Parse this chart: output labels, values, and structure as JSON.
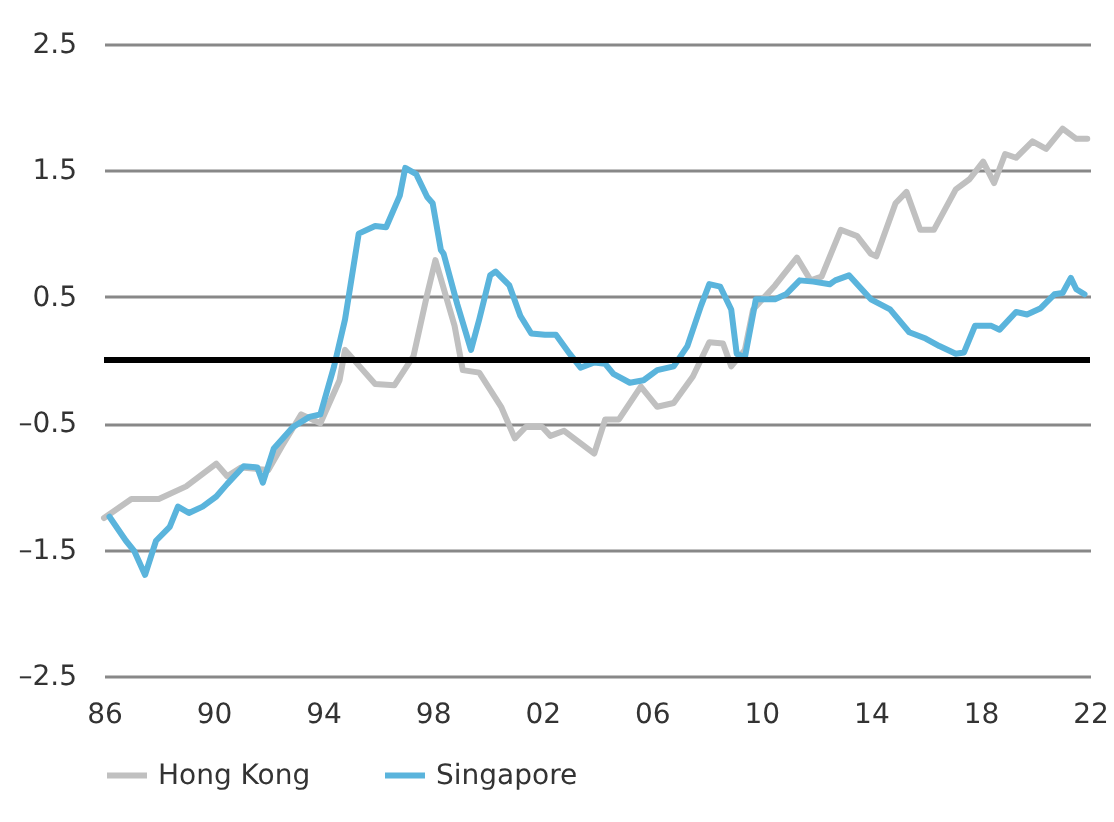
{
  "chart_data": {
    "type": "line",
    "xlim": [
      1986,
      2022
    ],
    "xticks": [
      {
        "value": 1986,
        "label": "86"
      },
      {
        "value": 1990,
        "label": "90"
      },
      {
        "value": 1994,
        "label": "94"
      },
      {
        "value": 1998,
        "label": "98"
      },
      {
        "value": 2002,
        "label": "02"
      },
      {
        "value": 2006,
        "label": "06"
      },
      {
        "value": 2010,
        "label": "10"
      },
      {
        "value": 2014,
        "label": "14"
      },
      {
        "value": 2018,
        "label": "18"
      },
      {
        "value": 2022,
        "label": "22"
      }
    ],
    "ylim": [
      -2.5,
      2.5
    ],
    "yticks": [
      {
        "value": -2.5,
        "label": "–2.5"
      },
      {
        "value": -1.5,
        "label": "–1.5"
      },
      {
        "value": -0.5,
        "label": "–0.5"
      },
      0.5,
      1.5,
      2.5
    ],
    "grid": "y",
    "legend": "bottom",
    "line_style": "solid",
    "ref_lines": [
      {
        "axis": "y",
        "value": 0,
        "color": "#000000"
      }
    ],
    "series": [
      {
        "name": "Hong Kong",
        "color": "#c0c0c0",
        "x": [
          1986,
          1987,
          1988,
          1989,
          1990.1,
          1990.5,
          1991,
          1992,
          1992.5,
          1993.2,
          1993.9,
          1994.6,
          1994.8,
          1995.9,
          1996.6,
          1997.3,
          1997.8,
          1998.1,
          1998.8,
          1999.1,
          1999.7,
          2000.5,
          2001,
          2001.4,
          2002,
          2002.3,
          2002.8,
          2003.9,
          2004.3,
          2004.8,
          2005.6,
          2006.2,
          2006.8,
          2007.5,
          2008.1,
          2008.6,
          2008.9,
          2009.4,
          2009.7,
          2010.5,
          2011.3,
          2011.8,
          2012.2,
          2012.9,
          2013.5,
          2014,
          2014.2,
          2014.9,
          2015.3,
          2015.8,
          2016.3,
          2016.7,
          2017.1,
          2017.6,
          2018.1,
          2018.5,
          2018.9,
          2019.3,
          2019.9,
          2020.4,
          2021,
          2021.5,
          2021.9
        ],
        "values": [
          -1.25,
          -1.1,
          -1.1,
          -1.0,
          -0.82,
          -0.92,
          -0.85,
          -0.87,
          -0.68,
          -0.43,
          -0.5,
          -0.16,
          0.08,
          -0.19,
          -0.2,
          0.03,
          0.52,
          0.79,
          0.27,
          -0.08,
          -0.1,
          -0.37,
          -0.62,
          -0.53,
          -0.53,
          -0.6,
          -0.56,
          -0.74,
          -0.47,
          -0.47,
          -0.21,
          -0.37,
          -0.34,
          -0.13,
          0.14,
          0.13,
          -0.05,
          0.08,
          0.4,
          0.59,
          0.81,
          0.63,
          0.66,
          1.03,
          0.98,
          0.84,
          0.82,
          1.24,
          1.33,
          1.03,
          1.03,
          1.19,
          1.35,
          1.43,
          1.57,
          1.4,
          1.63,
          1.6,
          1.73,
          1.67,
          1.83,
          1.75,
          1.75
        ]
      },
      {
        "name": "Singapore",
        "color": "#5ab4dc",
        "x": [
          1986.2,
          1986.8,
          1987.1,
          1987.5,
          1987.9,
          1988.4,
          1988.7,
          1989.1,
          1989.6,
          1990.1,
          1990.5,
          1991.1,
          1991.6,
          1991.8,
          1992.2,
          1992.9,
          1993.5,
          1993.9,
          1994.4,
          1994.8,
          1995.3,
          1995.9,
          1996.3,
          1996.8,
          1997,
          1997.4,
          1997.8,
          1998,
          1998.3,
          1998.4,
          1998.9,
          1999.4,
          1999.7,
          2000.1,
          2000.3,
          2000.8,
          2001.2,
          2001.6,
          2002.1,
          2002.5,
          2003,
          2003.4,
          2003.9,
          2004.3,
          2004.6,
          2005.2,
          2005.7,
          2006.2,
          2006.8,
          2007.3,
          2007.8,
          2008.1,
          2008.5,
          2008.9,
          2009.1,
          2009.4,
          2009.8,
          2010.5,
          2010.9,
          2011.4,
          2011.9,
          2012.5,
          2012.7,
          2013.2,
          2014,
          2014.7,
          2015.4,
          2016,
          2016.5,
          2017.1,
          2017.4,
          2017.8,
          2018.4,
          2018.7,
          2019.3,
          2019.7,
          2020.2,
          2020.7,
          2021,
          2021.3,
          2021.5,
          2021.8
        ],
        "values": [
          -1.24,
          -1.43,
          -1.51,
          -1.7,
          -1.43,
          -1.32,
          -1.16,
          -1.21,
          -1.16,
          -1.08,
          -0.98,
          -0.84,
          -0.85,
          -0.97,
          -0.7,
          -0.53,
          -0.45,
          -0.43,
          -0.05,
          0.32,
          1.0,
          1.06,
          1.05,
          1.3,
          1.52,
          1.47,
          1.29,
          1.24,
          0.87,
          0.84,
          0.44,
          0.08,
          0.32,
          0.67,
          0.7,
          0.59,
          0.35,
          0.21,
          0.2,
          0.2,
          0.05,
          -0.06,
          -0.02,
          -0.03,
          -0.11,
          -0.18,
          -0.16,
          -0.08,
          -0.05,
          0.11,
          0.43,
          0.6,
          0.58,
          0.4,
          0.05,
          0.02,
          0.48,
          0.48,
          0.52,
          0.63,
          0.62,
          0.6,
          0.63,
          0.67,
          0.48,
          0.4,
          0.22,
          0.17,
          0.11,
          0.05,
          0.06,
          0.27,
          0.27,
          0.24,
          0.38,
          0.36,
          0.41,
          0.52,
          0.53,
          0.65,
          0.56,
          0.52
        ]
      }
    ]
  }
}
